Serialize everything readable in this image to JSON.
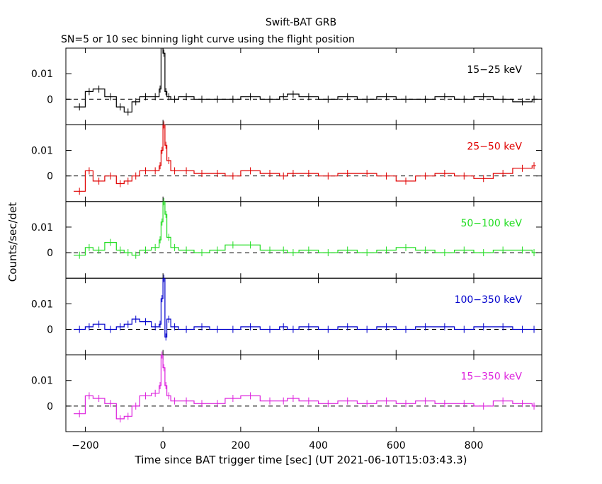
{
  "chart_data": {
    "type": "line",
    "title": "Swift-BAT GRB",
    "subtitle": "SN=5 or 10 sec binning light curve using the flight position",
    "xlabel": "Time since BAT trigger time [sec] (UT 2021-06-10T15:03:43.3)",
    "ylabel": "Counts/sec/det",
    "xlim": [
      -250,
      975
    ],
    "x_ticks": [
      -200,
      0,
      200,
      400,
      600,
      800
    ],
    "x_tick_labels": [
      "−200",
      "0",
      "200",
      "400",
      "600",
      "800"
    ],
    "y_ticks": [
      0,
      0.01
    ],
    "y_tick_labels": [
      "0",
      "0.01"
    ],
    "grid": false,
    "zero_line": "dashed",
    "panels": [
      {
        "name": "15−25 keV",
        "color": "#000000",
        "ylim": [
          -0.01,
          0.02
        ],
        "style": "step",
        "x": [
          -230,
          -200,
          -180,
          -150,
          -120,
          -100,
          -80,
          -60,
          -30,
          -10,
          -5,
          0,
          5,
          10,
          20,
          40,
          80,
          120,
          160,
          200,
          250,
          300,
          320,
          350,
          400,
          450,
          500,
          550,
          600,
          650,
          700,
          750,
          800,
          850,
          900,
          950
        ],
        "values": [
          -0.003,
          0.003,
          0.004,
          0.001,
          -0.003,
          -0.005,
          -0.001,
          0.001,
          0.001,
          0.004,
          0.022,
          0.018,
          0.003,
          0.001,
          0.0,
          0.001,
          0.0,
          0.0,
          0.0,
          0.001,
          0.0,
          0.001,
          0.002,
          0.001,
          0.0,
          0.001,
          0.0,
          0.001,
          0.0,
          0.0,
          0.001,
          0.0,
          0.001,
          0.0,
          -0.001,
          0.0
        ]
      },
      {
        "name": "25−50 keV",
        "color": "#e00000",
        "ylim": [
          -0.01,
          0.02
        ],
        "style": "step",
        "x": [
          -230,
          -200,
          -180,
          -150,
          -120,
          -100,
          -80,
          -60,
          -30,
          -10,
          -5,
          0,
          5,
          10,
          20,
          40,
          80,
          120,
          160,
          200,
          250,
          300,
          320,
          350,
          400,
          450,
          500,
          550,
          600,
          650,
          700,
          750,
          800,
          850,
          900,
          950
        ],
        "values": [
          -0.006,
          0.002,
          -0.002,
          0.0,
          -0.003,
          -0.002,
          0.0,
          0.002,
          0.002,
          0.004,
          0.01,
          0.02,
          0.012,
          0.006,
          0.002,
          0.002,
          0.001,
          0.001,
          0.0,
          0.002,
          0.001,
          0.0,
          0.001,
          0.001,
          0.0,
          0.001,
          0.001,
          0.0,
          -0.002,
          0.0,
          0.001,
          0.0,
          -0.001,
          0.001,
          0.003,
          0.004
        ]
      },
      {
        "name": "50−100 keV",
        "color": "#22dd22",
        "ylim": [
          -0.01,
          0.02
        ],
        "style": "step",
        "x": [
          -230,
          -200,
          -180,
          -150,
          -120,
          -100,
          -80,
          -60,
          -30,
          -10,
          -5,
          0,
          5,
          10,
          20,
          40,
          80,
          120,
          160,
          200,
          250,
          300,
          320,
          350,
          400,
          450,
          500,
          550,
          600,
          650,
          700,
          750,
          800,
          850,
          900,
          950
        ],
        "values": [
          -0.001,
          0.002,
          0.001,
          0.004,
          0.001,
          0.0,
          -0.001,
          0.001,
          0.002,
          0.005,
          0.012,
          0.02,
          0.015,
          0.006,
          0.002,
          0.001,
          0.0,
          0.001,
          0.003,
          0.003,
          0.001,
          0.001,
          0.0,
          0.001,
          0.0,
          0.001,
          0.0,
          0.001,
          0.002,
          0.001,
          0.0,
          0.001,
          0.0,
          0.001,
          0.001,
          0.0
        ]
      },
      {
        "name": "100−350 keV",
        "color": "#0000cc",
        "ylim": [
          -0.01,
          0.02
        ],
        "style": "step",
        "x": [
          -230,
          -200,
          -180,
          -150,
          -120,
          -100,
          -80,
          -60,
          -30,
          -10,
          -5,
          0,
          5,
          10,
          20,
          40,
          80,
          120,
          160,
          200,
          250,
          300,
          320,
          350,
          400,
          450,
          500,
          550,
          600,
          650,
          700,
          750,
          800,
          850,
          900,
          950
        ],
        "values": [
          0.0,
          0.001,
          0.002,
          0.0,
          0.001,
          0.002,
          0.004,
          0.003,
          0.001,
          0.002,
          0.012,
          0.02,
          -0.003,
          0.004,
          0.001,
          0.0,
          0.001,
          0.0,
          0.0,
          0.001,
          0.0,
          0.001,
          0.0,
          0.001,
          0.0,
          0.001,
          0.0,
          0.001,
          0.0,
          0.001,
          0.001,
          0.0,
          0.001,
          0.001,
          0.0,
          0.0
        ]
      },
      {
        "name": "15−350 keV",
        "color": "#dd22dd",
        "ylim": [
          -0.01,
          0.02
        ],
        "style": "step",
        "x": [
          -230,
          -200,
          -180,
          -150,
          -120,
          -100,
          -80,
          -60,
          -30,
          -10,
          -5,
          0,
          5,
          10,
          20,
          40,
          80,
          120,
          160,
          200,
          250,
          300,
          320,
          350,
          400,
          450,
          500,
          550,
          600,
          650,
          700,
          750,
          800,
          850,
          900,
          950
        ],
        "values": [
          -0.003,
          0.004,
          0.003,
          0.001,
          -0.005,
          -0.004,
          0.0,
          0.004,
          0.005,
          0.008,
          0.02,
          0.015,
          0.008,
          0.004,
          0.002,
          0.002,
          0.001,
          0.001,
          0.003,
          0.004,
          0.002,
          0.002,
          0.003,
          0.002,
          0.001,
          0.002,
          0.001,
          0.002,
          0.001,
          0.002,
          0.001,
          0.001,
          0.0,
          0.002,
          0.001,
          0.0
        ]
      }
    ]
  }
}
